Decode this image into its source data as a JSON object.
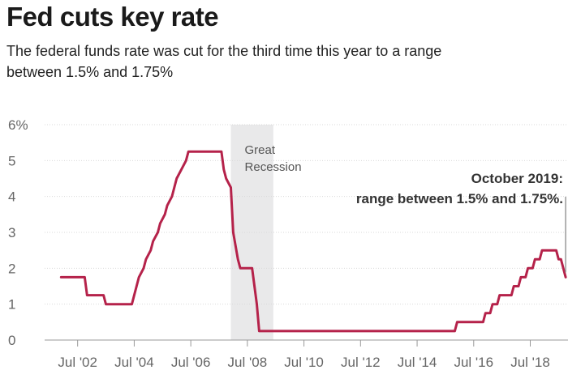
{
  "title": "Fed cuts key rate",
  "subtitle": "The federal funds rate was cut for the third time this year to a range between 1.5% and 1.75%",
  "chart_data": {
    "type": "line",
    "title": "Fed cuts key rate",
    "subtitle": "The federal funds rate was cut for the third time this year to a range between 1.5% and 1.75%",
    "xlabel": "",
    "ylabel": "",
    "ylim": [
      0,
      6
    ],
    "xlim": [
      "2001-05",
      "2019-11"
    ],
    "y_ticks": [
      "0",
      "1",
      "2",
      "3",
      "4",
      "5",
      "6%"
    ],
    "x_ticks": [
      {
        "date": "2002-07",
        "label": "Jul '02"
      },
      {
        "date": "2004-07",
        "label": "Jul '04"
      },
      {
        "date": "2006-07",
        "label": "Jul '06"
      },
      {
        "date": "2008-07",
        "label": "Jul '08"
      },
      {
        "date": "2010-07",
        "label": "Jul '10"
      },
      {
        "date": "2012-07",
        "label": "Jul '12"
      },
      {
        "date": "2014-07",
        "label": "Jul '14"
      },
      {
        "date": "2016-07",
        "label": "Jul '16"
      },
      {
        "date": "2018-07",
        "label": "Jul '18"
      }
    ],
    "grid": true,
    "series": [
      {
        "color": "#b5224a",
        "points": [
          [
            "2001-12",
            1.75
          ],
          [
            "2002-10",
            1.75
          ],
          [
            "2002-11",
            1.25
          ],
          [
            "2003-06",
            1.25
          ],
          [
            "2003-07",
            1.0
          ],
          [
            "2004-06",
            1.0
          ],
          [
            "2004-07",
            1.25
          ],
          [
            "2004-08",
            1.5
          ],
          [
            "2004-09",
            1.75
          ],
          [
            "2004-11",
            2.0
          ],
          [
            "2004-12",
            2.25
          ],
          [
            "2005-02",
            2.5
          ],
          [
            "2005-03",
            2.75
          ],
          [
            "2005-05",
            3.0
          ],
          [
            "2005-06",
            3.25
          ],
          [
            "2005-08",
            3.5
          ],
          [
            "2005-09",
            3.75
          ],
          [
            "2005-11",
            4.0
          ],
          [
            "2005-12",
            4.25
          ],
          [
            "2006-01",
            4.5
          ],
          [
            "2006-03",
            4.75
          ],
          [
            "2006-05",
            5.0
          ],
          [
            "2006-06",
            5.25
          ],
          [
            "2007-08",
            5.25
          ],
          [
            "2007-09",
            4.75
          ],
          [
            "2007-10",
            4.5
          ],
          [
            "2007-12",
            4.25
          ],
          [
            "2008-01",
            3.0
          ],
          [
            "2008-03",
            2.25
          ],
          [
            "2008-04",
            2.0
          ],
          [
            "2008-09",
            2.0
          ],
          [
            "2008-10",
            1.5
          ],
          [
            "2008-11",
            1.0
          ],
          [
            "2008-12",
            0.25
          ],
          [
            "2015-11",
            0.25
          ],
          [
            "2015-12",
            0.5
          ],
          [
            "2016-11",
            0.5
          ],
          [
            "2016-12",
            0.75
          ],
          [
            "2017-02",
            0.75
          ],
          [
            "2017-03",
            1.0
          ],
          [
            "2017-05",
            1.0
          ],
          [
            "2017-06",
            1.25
          ],
          [
            "2017-11",
            1.25
          ],
          [
            "2017-12",
            1.5
          ],
          [
            "2018-02",
            1.5
          ],
          [
            "2018-03",
            1.75
          ],
          [
            "2018-05",
            1.75
          ],
          [
            "2018-06",
            2.0
          ],
          [
            "2018-08",
            2.0
          ],
          [
            "2018-09",
            2.25
          ],
          [
            "2018-11",
            2.25
          ],
          [
            "2018-12",
            2.5
          ],
          [
            "2019-06",
            2.5
          ],
          [
            "2019-07",
            2.25
          ],
          [
            "2019-08",
            2.25
          ],
          [
            "2019-09",
            2.0
          ],
          [
            "2019-10",
            1.75
          ]
        ]
      }
    ],
    "shaded_regions": [
      {
        "label": "Great Recession",
        "label_lines": [
          "Great",
          "Recession"
        ],
        "start": "2007-12",
        "end": "2009-06",
        "color": "#e9e9ea"
      }
    ],
    "annotations": [
      {
        "lines": [
          "October 2019:",
          "range between 1.5% and 1.75%."
        ],
        "date": "2019-10",
        "value": 1.75
      }
    ]
  }
}
